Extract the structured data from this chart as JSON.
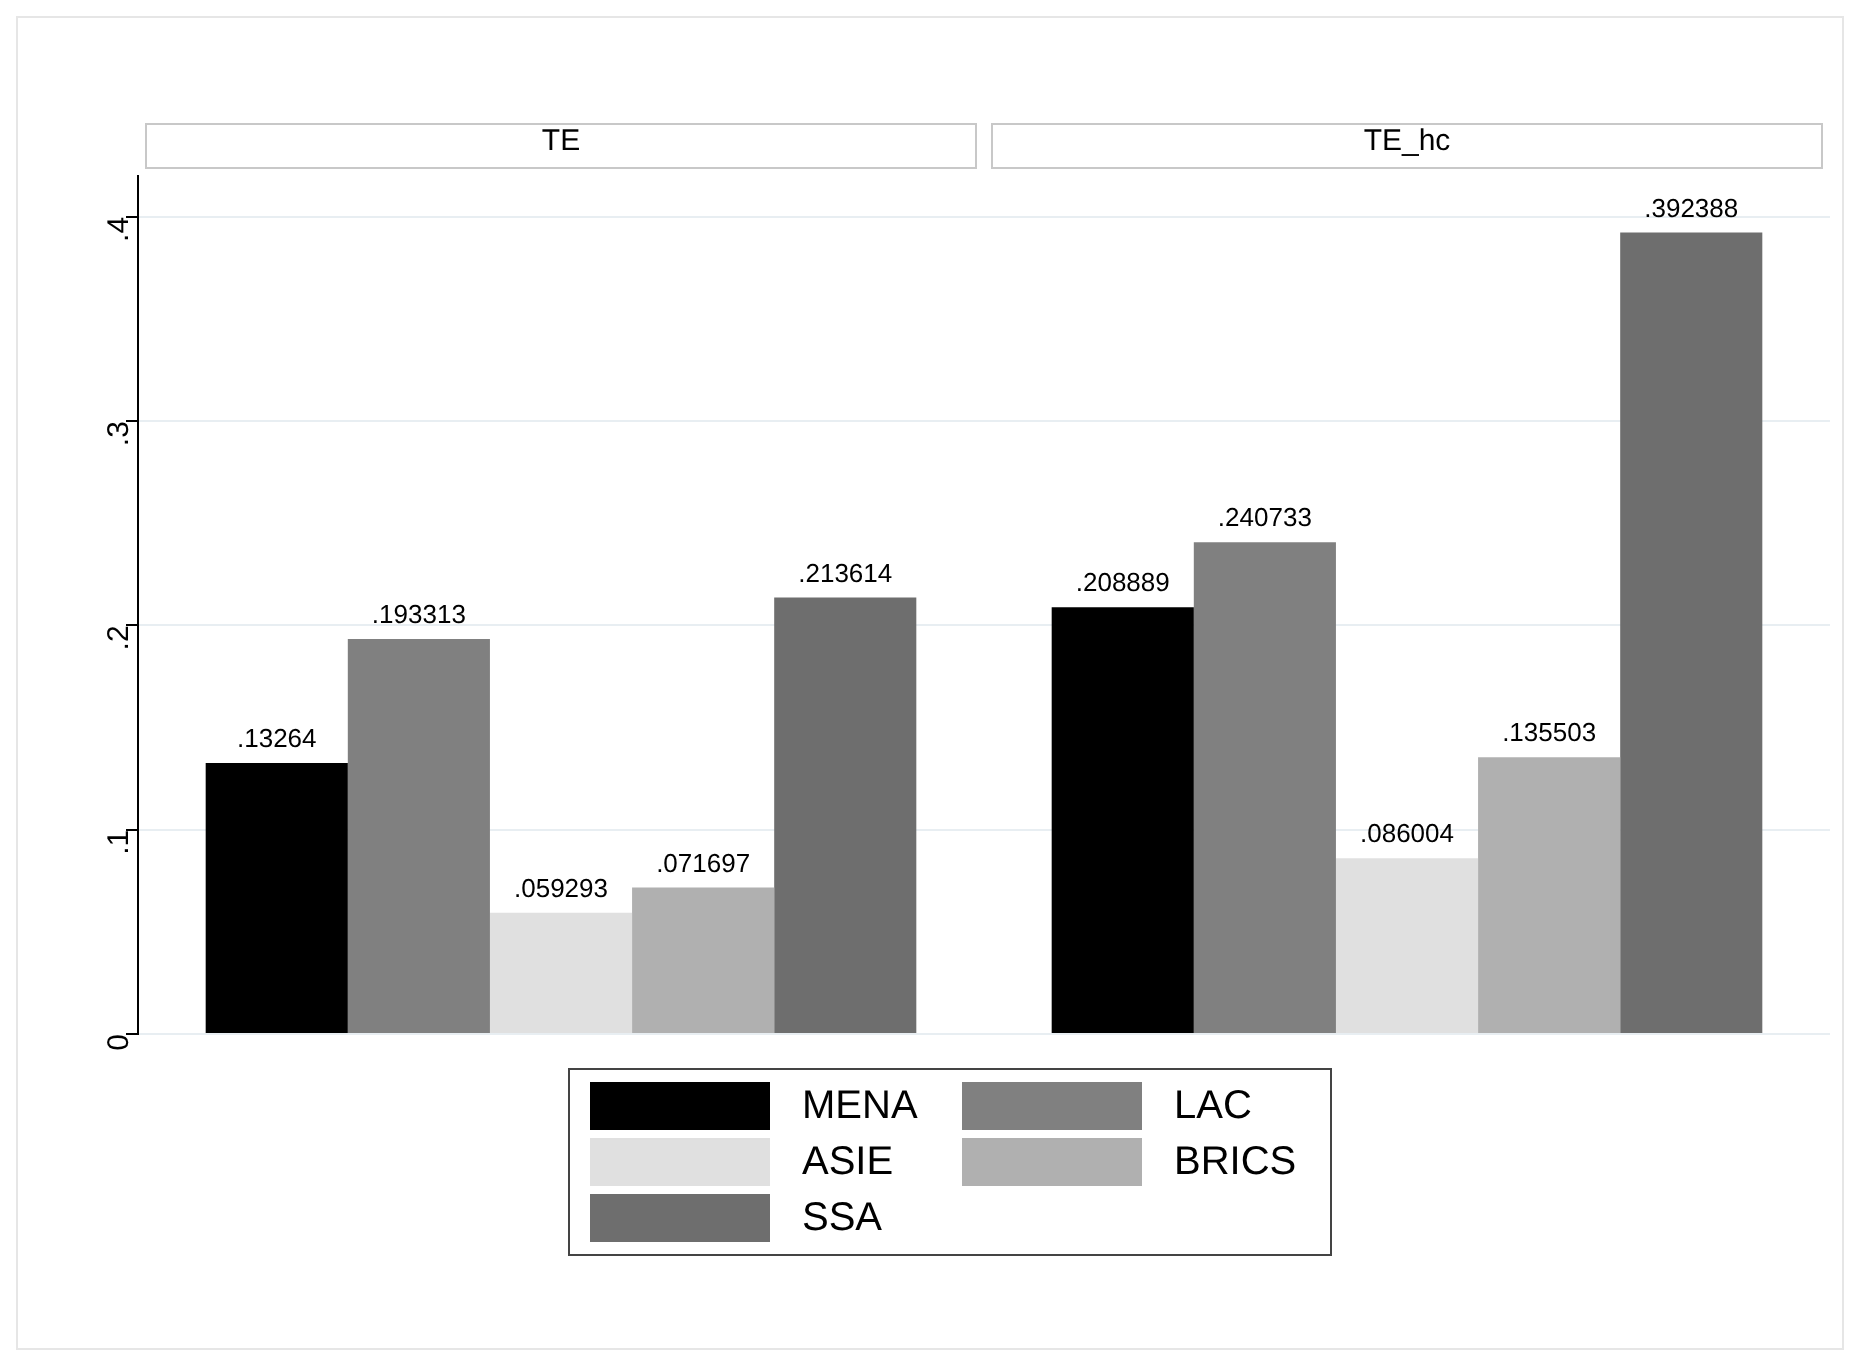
{
  "chart_data": {
    "type": "bar",
    "categories": [
      "TE",
      "TE_hc"
    ],
    "series": [
      {
        "name": "MENA",
        "color": "#000000",
        "values": [
          0.13264,
          0.208889
        ],
        "value_labels": [
          ".13264",
          ".208889"
        ]
      },
      {
        "name": "LAC",
        "color": "#808080",
        "values": [
          0.193313,
          0.240733
        ],
        "value_labels": [
          ".193313",
          ".240733"
        ]
      },
      {
        "name": "ASIE",
        "color": "#e0e0e0",
        "values": [
          0.059293,
          0.086004
        ],
        "value_labels": [
          ".059293",
          ".086004"
        ]
      },
      {
        "name": "BRICS",
        "color": "#b0b0b0",
        "values": [
          0.071697,
          0.135503
        ],
        "value_labels": [
          ".071697",
          ".135503"
        ]
      },
      {
        "name": "SSA",
        "color": "#6e6e6e",
        "values": [
          0.213614,
          0.392388
        ],
        "value_labels": [
          ".213614",
          ".392388"
        ]
      }
    ],
    "ylim": [
      0,
      0.42
    ],
    "yticks": [
      0,
      {
        "value": 0.1,
        "label": ".1"
      },
      {
        "value": 0.2,
        "label": ".2"
      },
      {
        "value": 0.3,
        "label": ".3"
      },
      {
        "value": 0.4,
        "label": ".4"
      }
    ],
    "grid": "y",
    "legend": "bottom"
  }
}
